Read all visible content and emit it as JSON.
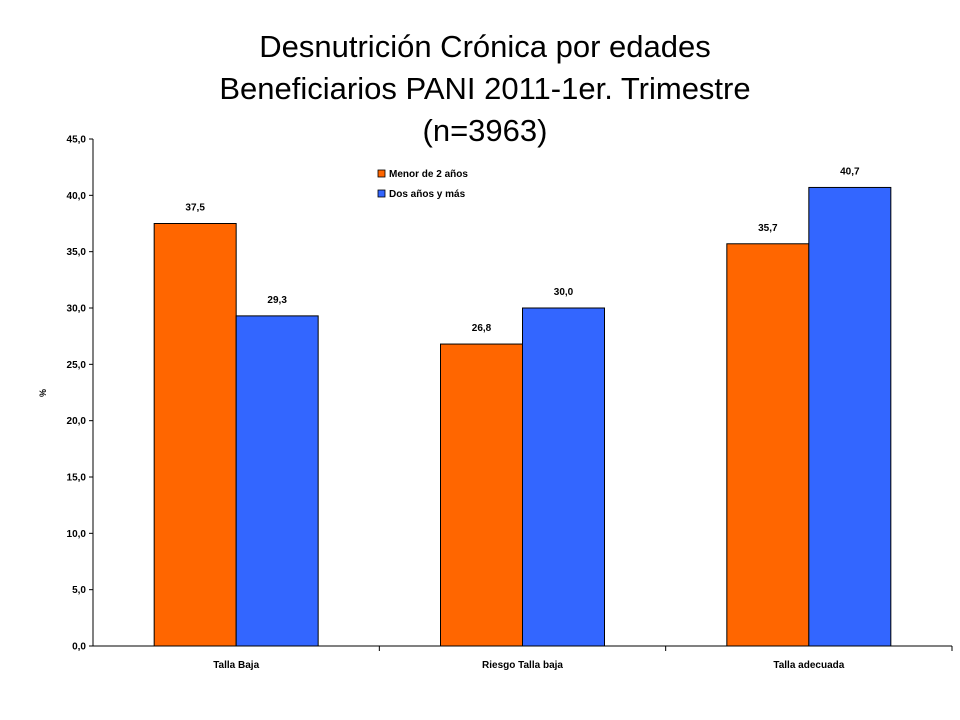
{
  "chart_data": {
    "type": "bar",
    "title": [
      "Desnutrición Crónica por edades",
      "Beneficiarios PANI 2011-1er. Trimestre",
      "(n=3963)"
    ],
    "xlabel": "",
    "ylabel": "%",
    "ylim": [
      0,
      45
    ],
    "yticks": [
      0,
      5,
      10,
      15,
      20,
      25,
      30,
      35,
      40,
      45
    ],
    "ytick_labels": [
      "0,0",
      "5,0",
      "10,0",
      "15,0",
      "20,0",
      "25,0",
      "30,0",
      "35,0",
      "40,0",
      "45,0"
    ],
    "grid": false,
    "legend_position": "top-center",
    "categories": [
      "Talla Baja",
      "Riesgo Talla baja",
      "Talla adecuada"
    ],
    "series": [
      {
        "name": "Menor de 2 años",
        "color": "#ff6600",
        "values": [
          37.5,
          26.8,
          35.7
        ],
        "labels": [
          "37,5",
          "26,8",
          "35,7"
        ]
      },
      {
        "name": "Dos años y más",
        "color": "#3366ff",
        "values": [
          29.3,
          30.0,
          40.7
        ],
        "labels": [
          "29,3",
          "30,0",
          "40,7"
        ]
      }
    ]
  }
}
